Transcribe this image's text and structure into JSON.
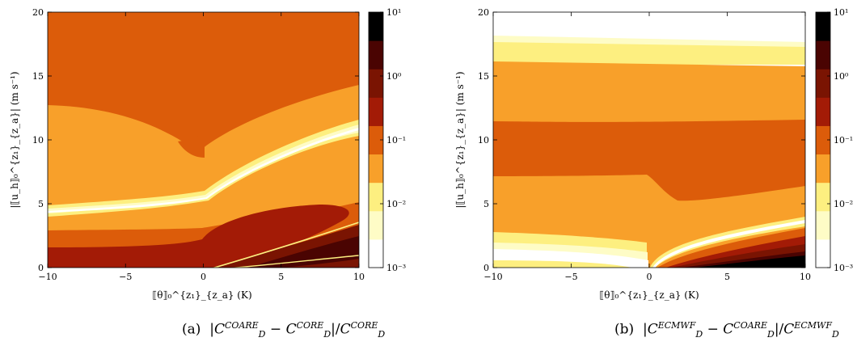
{
  "panels": [
    {
      "caption_label": "(a)",
      "caption_num": "C",
      "caption_num_sup": "COARE",
      "caption_num_sub": "D",
      "caption_ref": "C",
      "caption_ref_sup": "CORE",
      "caption_ref_sub": "D",
      "xlabel": "⟦θ⟧₀^{z₁}_{z_a} (K)",
      "ylabel": "|⟦u_h⟧₀^{z₁}_{z_a}| (m s⁻¹)"
    },
    {
      "caption_label": "(b)",
      "caption_num": "C",
      "caption_num_sup": "ECMWF",
      "caption_num_sub": "D",
      "caption_ref": "C",
      "caption_ref_sup": "COARE",
      "caption_ref_sub": "D",
      "xlabel": "⟦θ⟧₀^{z₁}_{z_a} (K)",
      "ylabel": "|⟦u_h⟧₀^{z₁}_{z_a}| (m s⁻¹)"
    }
  ],
  "colorbar": {
    "levels": [
      "10^-3",
      "10^-2",
      "10^-1",
      "10^0",
      "10^1"
    ],
    "level_text": [
      "10⁻³",
      "10⁻²",
      "10⁻¹",
      "10⁰",
      "10¹"
    ],
    "colors": [
      "#ffffff",
      "#fefcc6",
      "#fdef80",
      "#f8a02a",
      "#dc5c0a",
      "#a31b06",
      "#7a1402",
      "#4a0402",
      "#000000"
    ],
    "scale": "log"
  },
  "chart_data": [
    {
      "type": "heatmap",
      "title": "",
      "xlabel": "⟦θ⟧ (K)",
      "ylabel": "|⟦u_h⟧| (m s⁻¹)",
      "xlim": [
        -10,
        10
      ],
      "ylim": [
        0,
        20
      ],
      "xticks": [
        -10,
        -5,
        0,
        5,
        10
      ],
      "yticks": [
        0,
        5,
        10,
        15,
        20
      ],
      "data_region": {
        "x": [
          -10,
          10
        ],
        "y": [
          0.4,
          20
        ]
      },
      "regions": [
        {
          "level": "1e-1 to 3e-1",
          "y_at_x": [
            [
              -10,
              20
            ],
            [
              10,
              20
            ]
          ],
          "dominant": "upper area"
        },
        {
          "level": "3e-2 to 1e-1",
          "description": "band 5-10 m/s at negative θ, rising toward 14 at θ=10"
        },
        {
          "level": "1e-3 to 1e-2",
          "description": "narrow white/yellow band from (-10,4.6) to (10,11)"
        },
        {
          "level": "3e-1 to 1",
          "description": "lower band 0.4-3.5 m/s, lobe reaching 5 at θ≈8"
        },
        {
          "level": "3 to 10",
          "description": "wedge near θ>0, u<3"
        }
      ]
    },
    {
      "type": "heatmap",
      "title": "",
      "xlabel": "⟦θ⟧ (K)",
      "ylabel": "|⟦u_h⟧| (m s⁻¹)",
      "xlim": [
        -10,
        10
      ],
      "ylim": [
        0,
        20
      ],
      "xticks": [
        -10,
        -5,
        0,
        5,
        10
      ],
      "yticks": [
        0,
        5,
        10,
        15,
        20
      ],
      "data_region": {
        "x": [
          -10,
          10
        ],
        "y": [
          0.4,
          18.3
        ]
      },
      "regions": [
        {
          "level": "1e-3 to 1e-2",
          "description": "white/yellow band 16-18 m/s"
        },
        {
          "level": "3e-2 to 1e-1",
          "description": "orange band 11.7-16 m/s"
        },
        {
          "level": "1e-1 to 3e-1",
          "description": "dark orange band 7.3-11.5 m/s"
        },
        {
          "level": "3e-2 to 1e-1",
          "description": "orange band 3-7.3 m/s"
        },
        {
          "level": "1e-3 to 1e-2",
          "description": "white/yellow band 0.4-3 m/s at negative θ"
        },
        {
          "level": "1 to 10",
          "description": "dark wedge at θ>0, u<3"
        }
      ]
    }
  ]
}
